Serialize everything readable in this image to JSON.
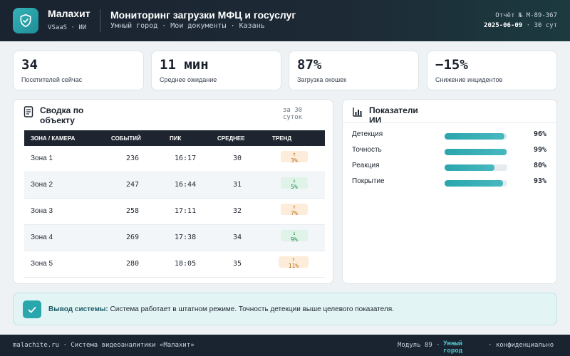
{
  "colors": {
    "header_bg": "#1a2330",
    "accent": "#2aa6ad",
    "up": "#b86b13",
    "down": "#1e8a4f"
  },
  "brand": {
    "name": "Малахит",
    "sub": "VSaaS · ИИ"
  },
  "header": {
    "title": "Мониторинг загрузки МФЦ и госуслуг",
    "subtitle": "Умный город · Мои документы · Казань",
    "report_no": "Отчёт № M-89-367",
    "report_date": "2025-06-09",
    "report_period": "· 30 сут"
  },
  "kpis": [
    {
      "value": "34",
      "label": "Посетителей сейчас"
    },
    {
      "value": "11 мин",
      "label": "Среднее ожидание"
    },
    {
      "value": "87%",
      "label": "Загрузка окошек"
    },
    {
      "value": "−15%",
      "label": "Снижение инцидентов"
    }
  ],
  "summary": {
    "title": "Сводка по объекту",
    "period": "за 30 суток",
    "columns": [
      "ЗОНА / КАМЕРА",
      "СОБЫТИЙ",
      "ПИК",
      "СРЕДНЕЕ",
      "ТРЕНД"
    ],
    "rows": [
      {
        "zone": "Зона 1",
        "events": "236",
        "peak": "16:17",
        "avg": "30",
        "trend_arrow": "↑",
        "trend": "3%",
        "dir": "up"
      },
      {
        "zone": "Зона 2",
        "events": "247",
        "peak": "16:44",
        "avg": "31",
        "trend_arrow": "↓",
        "trend": "5%",
        "dir": "down"
      },
      {
        "zone": "Зона 3",
        "events": "258",
        "peak": "17:11",
        "avg": "32",
        "trend_arrow": "↑",
        "trend": "7%",
        "dir": "up"
      },
      {
        "zone": "Зона 4",
        "events": "269",
        "peak": "17:38",
        "avg": "34",
        "trend_arrow": "↓",
        "trend": "9%",
        "dir": "down"
      },
      {
        "zone": "Зона 5",
        "events": "280",
        "peak": "18:05",
        "avg": "35",
        "trend_arrow": "↑",
        "trend": "11%",
        "dir": "up"
      }
    ]
  },
  "ai": {
    "title": "Показатели ИИ",
    "metrics": [
      {
        "label": "Детекция",
        "value": "96%",
        "fraction": 0.96
      },
      {
        "label": "Точность",
        "value": "99%",
        "fraction": 0.99
      },
      {
        "label": "Реакция",
        "value": "80%",
        "fraction": 0.8
      },
      {
        "label": "Покрытие",
        "value": "93%",
        "fraction": 0.93
      }
    ]
  },
  "conclusion": {
    "label": "Вывод системы:",
    "text": "Система работает в штатном режиме. Точность детекции выше целевого показателя."
  },
  "footer": {
    "left": "malachite.ru · Система видеоаналитики «Малахит»",
    "module": "Модуль 89 ·",
    "city": "Умный город",
    "conf": "· конфиденциально"
  }
}
